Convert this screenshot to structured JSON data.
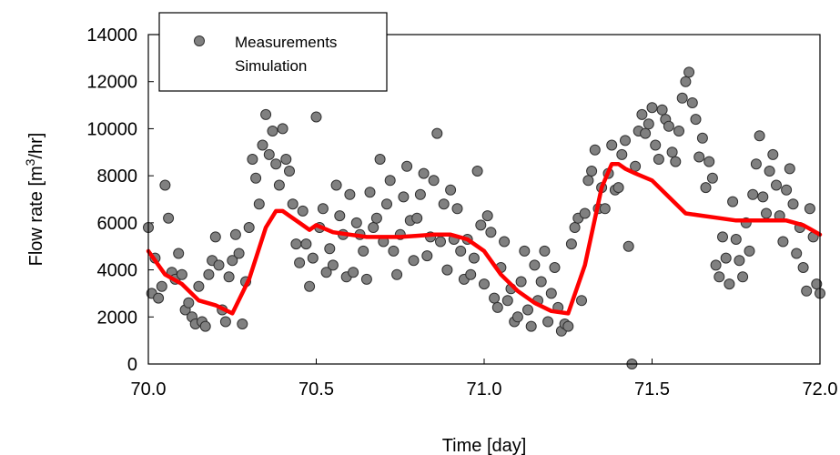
{
  "chart_data": {
    "type": "scatter",
    "xlabel": "Time [day]",
    "ylabel": {
      "prefix": "Flow rate [m",
      "sup": "3",
      "suffix": "/hr]"
    },
    "xlim": [
      70.0,
      72.0
    ],
    "ylim": [
      0,
      14000
    ],
    "xticks": [
      "70.0",
      "70.5",
      "71.0",
      "71.5",
      "72.0"
    ],
    "yticks": [
      "0",
      "2000",
      "4000",
      "6000",
      "8000",
      "10000",
      "12000",
      "14000"
    ],
    "grid": false,
    "legend": {
      "position": "top-left",
      "entries": [
        "Measurements",
        "Simulation"
      ]
    },
    "colors": {
      "measurements_fill": "#808080",
      "measurements_edge": "#303030",
      "simulation": "#ff0000"
    },
    "series": [
      {
        "name": "Measurements",
        "kind": "scatter",
        "x": [
          70.0,
          70.01,
          70.02,
          70.03,
          70.04,
          70.05,
          70.06,
          70.07,
          70.08,
          70.09,
          70.1,
          70.11,
          70.12,
          70.13,
          70.14,
          70.15,
          70.16,
          70.17,
          70.18,
          70.19,
          70.2,
          70.21,
          70.22,
          70.23,
          70.24,
          70.25,
          70.26,
          70.27,
          70.28,
          70.29,
          70.3,
          70.31,
          70.32,
          70.33,
          70.34,
          70.35,
          70.36,
          70.37,
          70.38,
          70.39,
          70.4,
          70.41,
          70.42,
          70.43,
          70.44,
          70.45,
          70.46,
          70.47,
          70.48,
          70.49,
          70.5,
          70.51,
          70.52,
          70.53,
          70.54,
          70.55,
          70.56,
          70.57,
          70.58,
          70.59,
          70.6,
          70.61,
          70.62,
          70.63,
          70.64,
          70.65,
          70.66,
          70.67,
          70.68,
          70.69,
          70.7,
          70.71,
          70.72,
          70.73,
          70.74,
          70.75,
          70.76,
          70.77,
          70.78,
          70.79,
          70.8,
          70.81,
          70.82,
          70.83,
          70.84,
          70.85,
          70.86,
          70.87,
          70.88,
          70.89,
          70.9,
          70.91,
          70.92,
          70.93,
          70.94,
          70.95,
          70.96,
          70.97,
          70.98,
          70.99,
          71.0,
          71.01,
          71.02,
          71.03,
          71.04,
          71.05,
          71.06,
          71.07,
          71.08,
          71.09,
          71.1,
          71.11,
          71.12,
          71.13,
          71.14,
          71.15,
          71.16,
          71.17,
          71.18,
          71.19,
          71.2,
          71.21,
          71.22,
          71.23,
          71.24,
          71.25,
          71.26,
          71.27,
          71.28,
          71.29,
          71.3,
          71.31,
          71.32,
          71.33,
          71.34,
          71.35,
          71.36,
          71.37,
          71.38,
          71.39,
          71.4,
          71.41,
          71.42,
          71.43,
          71.44,
          71.45,
          71.46,
          71.47,
          71.48,
          71.49,
          71.5,
          71.51,
          71.52,
          71.53,
          71.54,
          71.55,
          71.56,
          71.57,
          71.58,
          71.59,
          71.6,
          71.61,
          71.62,
          71.63,
          71.64,
          71.65,
          71.66,
          71.67,
          71.68,
          71.69,
          71.7,
          71.71,
          71.72,
          71.73,
          71.74,
          71.75,
          71.76,
          71.77,
          71.78,
          71.79,
          71.8,
          71.81,
          71.82,
          71.83,
          71.84,
          71.85,
          71.86,
          71.87,
          71.88,
          71.89,
          71.9,
          71.91,
          71.92,
          71.93,
          71.94,
          71.95,
          71.96,
          71.97,
          71.98,
          71.99,
          72.0
        ],
        "y": [
          5800,
          3000,
          4500,
          2800,
          3300,
          7600,
          6200,
          3900,
          3600,
          4700,
          3800,
          2300,
          2600,
          2000,
          1700,
          3300,
          1800,
          1600,
          3800,
          4400,
          5400,
          4200,
          2300,
          1800,
          3700,
          4400,
          5500,
          4700,
          1700,
          3500,
          5800,
          8700,
          7900,
          6800,
          9300,
          10600,
          8900,
          9900,
          8500,
          7600,
          10000,
          8700,
          8200,
          6800,
          5100,
          4300,
          6500,
          5100,
          3300,
          4500,
          10500,
          5800,
          6600,
          3900,
          4900,
          4200,
          7600,
          6300,
          5500,
          3700,
          7200,
          3900,
          6000,
          5500,
          4800,
          3600,
          7300,
          5800,
          6200,
          8700,
          5200,
          6800,
          7800,
          4800,
          3800,
          5500,
          7100,
          8400,
          6100,
          4400,
          6200,
          7200,
          8100,
          4600,
          5400,
          7800,
          9800,
          5200,
          6800,
          4000,
          7400,
          5300,
          6600,
          4800,
          3600,
          5300,
          3800,
          4500,
          8200,
          5900,
          3400,
          6300,
          5600,
          2800,
          2400,
          4100,
          5200,
          2700,
          3200,
          1800,
          2000,
          3500,
          4800,
          2300,
          1600,
          4200,
          2700,
          3500,
          4800,
          1800,
          3000,
          4100,
          2400,
          1400,
          1700,
          1600,
          5100,
          5800,
          6200,
          2700,
          6400,
          7800,
          8200,
          9100,
          6600,
          7500,
          6600,
          8100,
          9300,
          7400,
          7500,
          8900,
          9500,
          5000,
          0,
          8400,
          9900,
          10600,
          9800,
          10200,
          10900,
          9300,
          8700,
          10800,
          10400,
          10100,
          9000,
          8600,
          9900,
          11300,
          12000,
          12400,
          11100,
          10400,
          8800,
          9600,
          7500,
          8600,
          7900,
          4200,
          3700,
          5400,
          4500,
          3400,
          6900,
          5300,
          4400,
          3700,
          6000,
          4800,
          7200,
          8500,
          9700,
          7100,
          6400,
          8200,
          8900,
          7600,
          6300,
          5200,
          7400,
          8300,
          6800,
          4700,
          5800,
          4100,
          3100,
          6600,
          5400,
          3400,
          3000
        ]
      },
      {
        "name": "Simulation",
        "kind": "line",
        "x": [
          70.0,
          70.05,
          70.1,
          70.15,
          70.2,
          70.25,
          70.3,
          70.35,
          70.38,
          70.4,
          70.42,
          70.45,
          70.48,
          70.5,
          70.55,
          70.6,
          70.65,
          70.7,
          70.75,
          70.8,
          70.85,
          70.9,
          70.95,
          71.0,
          71.05,
          71.1,
          71.15,
          71.2,
          71.25,
          71.3,
          71.35,
          71.38,
          71.4,
          71.42,
          71.45,
          71.5,
          71.55,
          71.6,
          71.65,
          71.7,
          71.75,
          71.8,
          71.85,
          71.9,
          71.95,
          72.0
        ],
        "y": [
          4800,
          3800,
          3400,
          2700,
          2500,
          2150,
          3600,
          5800,
          6500,
          6500,
          6300,
          6000,
          5700,
          5900,
          5600,
          5500,
          5400,
          5400,
          5400,
          5450,
          5500,
          5500,
          5300,
          4800,
          3800,
          3100,
          2600,
          2250,
          2150,
          4200,
          7500,
          8500,
          8500,
          8300,
          8100,
          7800,
          7100,
          6400,
          6300,
          6200,
          6100,
          6100,
          6100,
          6100,
          5900,
          5500
        ]
      }
    ]
  }
}
